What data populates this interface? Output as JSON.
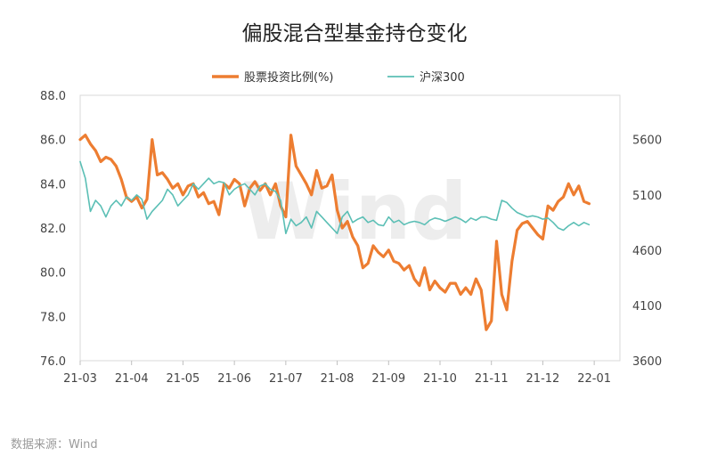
{
  "chart_data": {
    "type": "line",
    "title": "偏股混合型基金持仓变化",
    "source": "数据来源：Wind",
    "watermark": "Wind",
    "legend_position": "top-center",
    "x_ticks": [
      "21-03",
      "21-04",
      "21-05",
      "21-06",
      "21-07",
      "21-08",
      "21-09",
      "21-10",
      "21-11",
      "21-12",
      "22-01"
    ],
    "y_left": {
      "range": [
        76.0,
        88.0
      ],
      "ticks": [
        "88.0",
        "86.0",
        "84.0",
        "82.0",
        "80.0",
        "78.0",
        "76.0"
      ]
    },
    "y_right": {
      "range": [
        3600,
        6000
      ],
      "ticks": [
        "5600",
        "5100",
        "4600",
        "4100",
        "3600"
      ]
    },
    "series": [
      {
        "name": "股票投资比例(%)",
        "axis": "left",
        "color": "#ED7D31",
        "x": [
          0,
          0.1,
          0.2,
          0.3,
          0.4,
          0.5,
          0.6,
          0.7,
          0.8,
          0.9,
          1.0,
          1.1,
          1.2,
          1.3,
          1.4,
          1.5,
          1.6,
          1.7,
          1.8,
          1.9,
          2.0,
          2.1,
          2.2,
          2.3,
          2.4,
          2.5,
          2.6,
          2.7,
          2.8,
          2.9,
          3.0,
          3.1,
          3.2,
          3.3,
          3.4,
          3.5,
          3.6,
          3.7,
          3.8,
          3.9,
          4.0,
          4.1,
          4.2,
          4.3,
          4.4,
          4.5,
          4.6,
          4.7,
          4.8,
          4.9,
          5.0,
          5.1,
          5.2,
          5.3,
          5.4,
          5.5,
          5.6,
          5.7,
          5.8,
          5.9,
          6.0,
          6.1,
          6.2,
          6.3,
          6.4,
          6.5,
          6.6,
          6.7,
          6.8,
          6.9,
          7.0,
          7.1,
          7.2,
          7.3,
          7.4,
          7.5,
          7.6,
          7.7,
          7.8,
          7.9,
          8.0,
          8.1,
          8.2,
          8.3,
          8.4,
          8.5,
          8.6,
          8.7,
          8.8,
          8.9,
          9.0,
          9.1,
          9.2,
          9.3,
          9.4,
          9.5,
          9.6,
          9.7,
          9.8,
          9.9,
          10.0,
          10.1,
          10.2,
          10.3,
          10.4,
          10.5
        ],
        "values": [
          86.0,
          86.2,
          85.8,
          85.5,
          85.0,
          85.2,
          85.1,
          84.8,
          84.2,
          83.4,
          83.2,
          83.4,
          82.9,
          83.3,
          86.0,
          84.4,
          84.5,
          84.2,
          83.8,
          84.0,
          83.5,
          83.9,
          84.0,
          83.4,
          83.6,
          83.1,
          83.2,
          82.6,
          84.0,
          83.8,
          84.2,
          84.0,
          83.0,
          83.8,
          84.1,
          83.7,
          84.0,
          83.5,
          84.0,
          83.0,
          82.5,
          86.2,
          84.8,
          84.4,
          84.0,
          83.5,
          84.6,
          83.8,
          83.9,
          84.4,
          82.8,
          82.0,
          82.3,
          81.6,
          81.2,
          80.2,
          80.4,
          81.2,
          80.9,
          80.7,
          81.0,
          80.5,
          80.4,
          80.1,
          80.3,
          79.7,
          79.4,
          80.2,
          79.2,
          79.6,
          79.3,
          79.1,
          79.5,
          79.5,
          79.0,
          79.3,
          79.0,
          79.7,
          79.2,
          77.4,
          77.8,
          81.4,
          79.0,
          78.3,
          80.5,
          81.9,
          82.2,
          82.3,
          82.0,
          81.7,
          81.5,
          83.0,
          82.8,
          83.2,
          83.4,
          84.0,
          83.5,
          83.9,
          83.2,
          83.1,
          83.1,
          83.1,
          83.0,
          83.0,
          83.0,
          83.0
        ],
        "valid_until_index": 99
      },
      {
        "name": "沪深300",
        "axis": "right",
        "color": "#5BBFB5",
        "x": [
          0,
          0.1,
          0.2,
          0.3,
          0.4,
          0.5,
          0.6,
          0.7,
          0.8,
          0.9,
          1.0,
          1.1,
          1.2,
          1.3,
          1.4,
          1.5,
          1.6,
          1.7,
          1.8,
          1.9,
          2.0,
          2.1,
          2.2,
          2.3,
          2.4,
          2.5,
          2.6,
          2.7,
          2.8,
          2.9,
          3.0,
          3.1,
          3.2,
          3.3,
          3.4,
          3.5,
          3.6,
          3.7,
          3.8,
          3.9,
          4.0,
          4.1,
          4.2,
          4.3,
          4.4,
          4.5,
          4.6,
          4.7,
          4.8,
          4.9,
          5.0,
          5.1,
          5.2,
          5.3,
          5.4,
          5.5,
          5.6,
          5.7,
          5.8,
          5.9,
          6.0,
          6.1,
          6.2,
          6.3,
          6.4,
          6.5,
          6.6,
          6.7,
          6.8,
          6.9,
          7.0,
          7.1,
          7.2,
          7.3,
          7.4,
          7.5,
          7.6,
          7.7,
          7.8,
          7.9,
          8.0,
          8.1,
          8.2,
          8.3,
          8.4,
          8.5,
          8.6,
          8.7,
          8.8,
          8.9,
          9.0,
          9.1,
          9.2,
          9.3,
          9.4,
          9.5,
          9.6,
          9.7,
          9.8,
          9.9,
          10.0,
          10.1,
          10.2,
          10.3,
          10.4,
          10.5
        ],
        "values": [
          5400,
          5250,
          4950,
          5050,
          5000,
          4900,
          5000,
          5050,
          5000,
          5080,
          5050,
          5100,
          5060,
          4880,
          4950,
          5000,
          5050,
          5150,
          5100,
          5000,
          5050,
          5100,
          5200,
          5150,
          5200,
          5250,
          5200,
          5220,
          5210,
          5100,
          5150,
          5180,
          5200,
          5150,
          5100,
          5180,
          5200,
          5150,
          5130,
          5050,
          4750,
          4880,
          4820,
          4850,
          4900,
          4800,
          4950,
          4900,
          4850,
          4800,
          4750,
          4900,
          4950,
          4850,
          4880,
          4900,
          4850,
          4870,
          4830,
          4820,
          4900,
          4850,
          4870,
          4830,
          4850,
          4860,
          4850,
          4830,
          4870,
          4890,
          4880,
          4860,
          4880,
          4900,
          4880,
          4850,
          4890,
          4870,
          4900,
          4900,
          4880,
          4870,
          5050,
          5030,
          4980,
          4940,
          4920,
          4900,
          4910,
          4900,
          4880,
          4890,
          4850,
          4800,
          4780,
          4820,
          4850,
          4820,
          4850,
          4830,
          4850,
          4850,
          4850,
          4850,
          4850,
          4850
        ],
        "valid_until_index": 99
      }
    ]
  }
}
